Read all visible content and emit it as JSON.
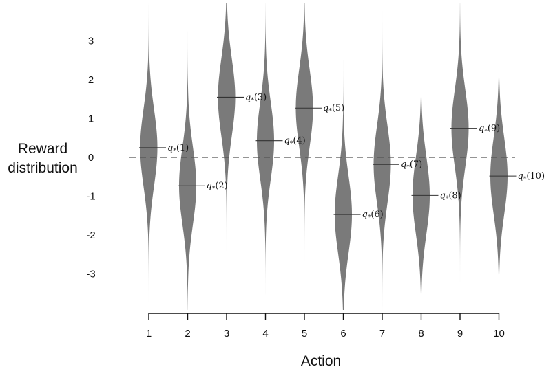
{
  "chart_data": {
    "type": "violin",
    "xlabel": "Action",
    "ylabel_lines": [
      "Reward",
      "distribution"
    ],
    "categories": [
      "1",
      "2",
      "3",
      "4",
      "5",
      "6",
      "7",
      "8",
      "9",
      "10"
    ],
    "y_ticks": [
      "3",
      "2",
      "1",
      "0",
      "-1",
      "-2",
      "-3"
    ],
    "y_tick_values": [
      3,
      2,
      1,
      0,
      -1,
      -2,
      -3
    ],
    "ylim": [
      -3.9,
      4.0
    ],
    "distribution": "normal, unit variance",
    "means": [
      0.25,
      -0.73,
      1.55,
      0.43,
      1.27,
      -1.47,
      -0.18,
      -0.98,
      0.75,
      -0.48
    ],
    "mean_labels": [
      "q*(1)",
      "q*(2)",
      "q*(3)",
      "q*(4)",
      "q*(5)",
      "q*(6)",
      "q*(7)",
      "q*(8)",
      "q*(9)",
      "q*(10)"
    ],
    "reference_line": {
      "y": 0,
      "style": "dashed"
    },
    "violin_color": "#7a7a7a",
    "grid": false
  }
}
